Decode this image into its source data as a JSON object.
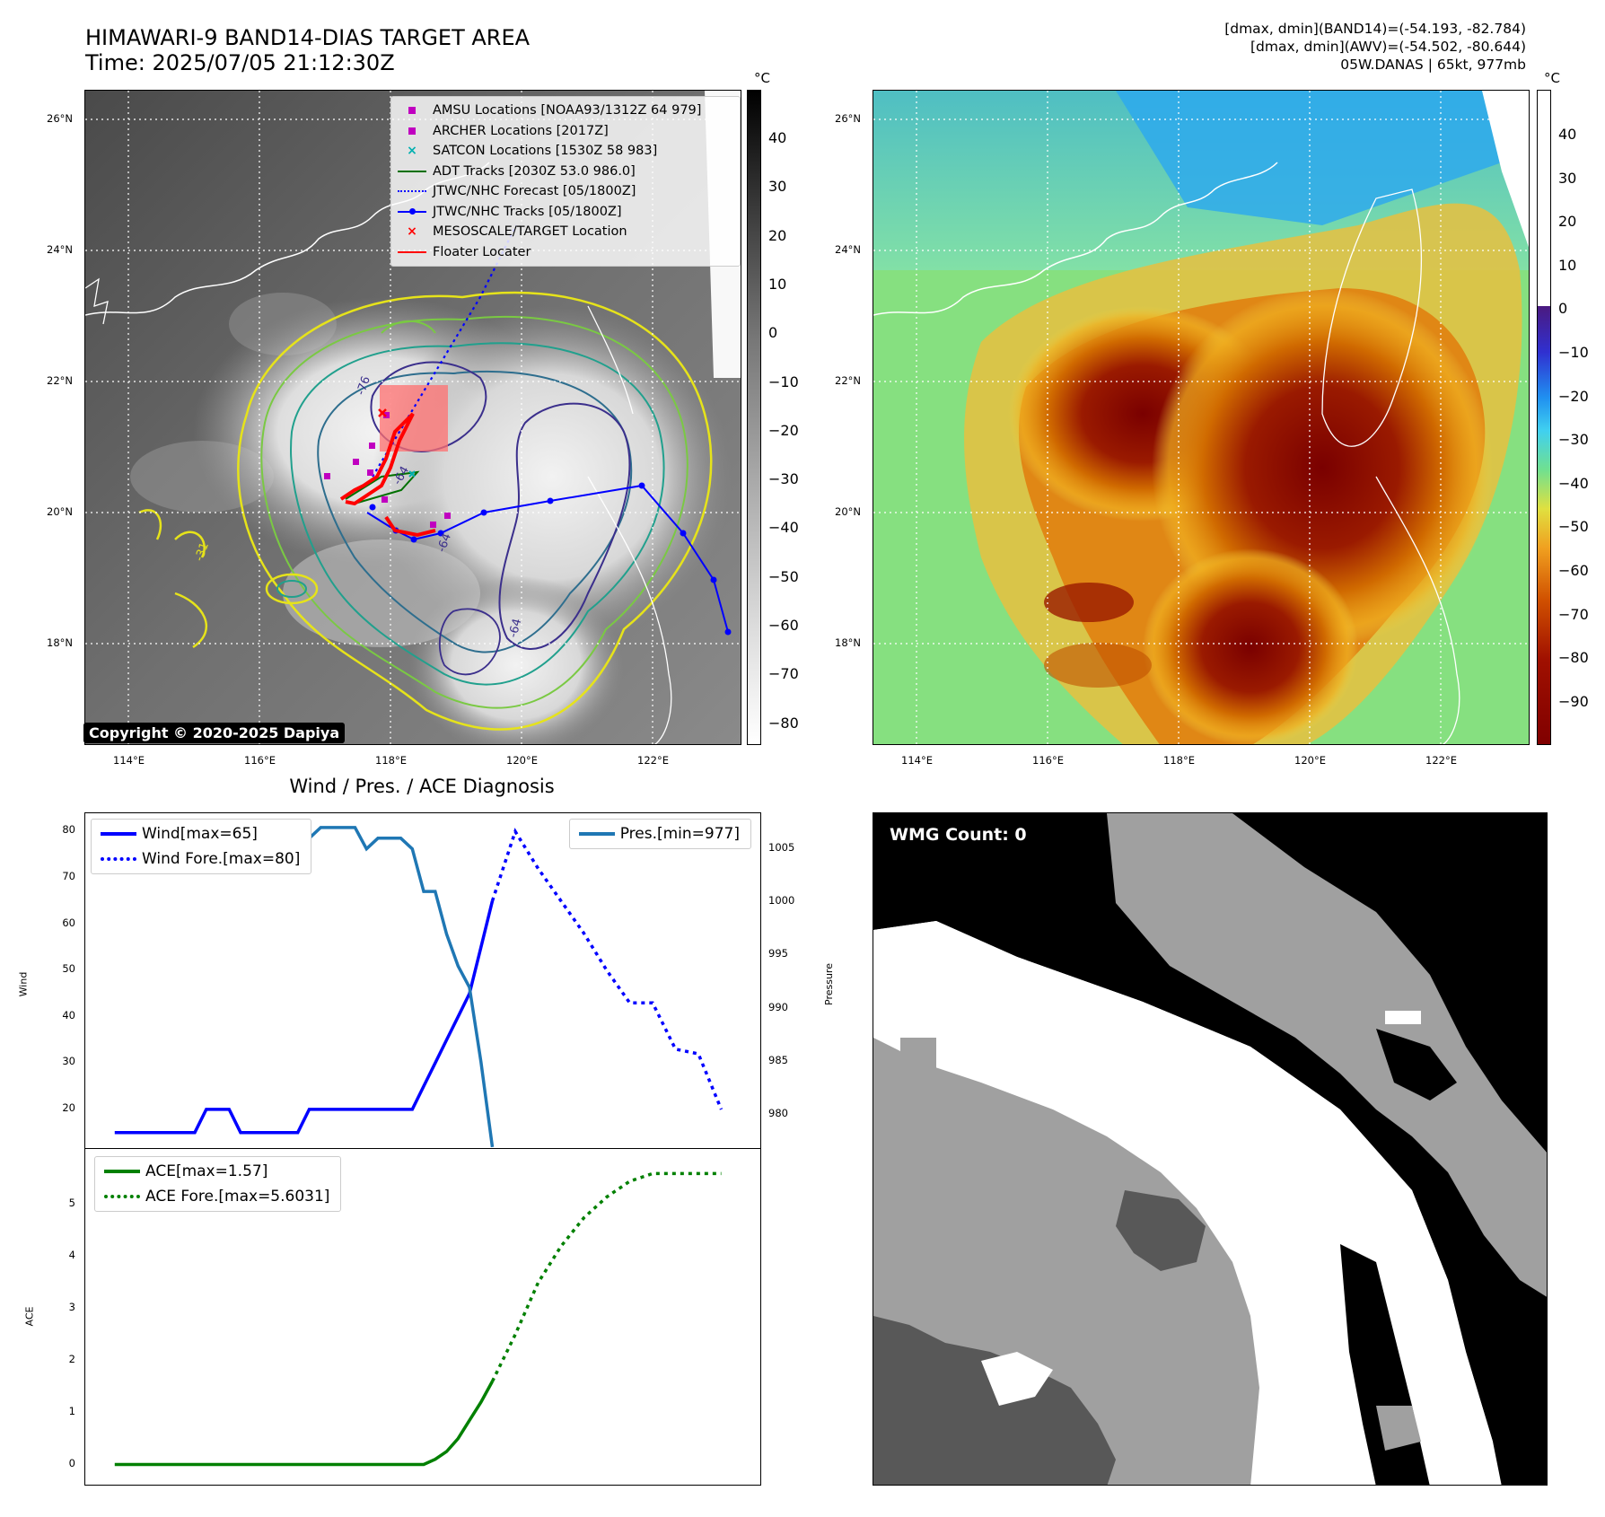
{
  "header": {
    "title_line1": "HIMAWARI-9 BAND14-DIAS TARGET AREA",
    "title_line2": "Time: 2025/07/05 21:12:30Z",
    "info_line1": "[dmax, dmin](BAND14)=(-54.193, -82.784)",
    "info_line2": "[dmax, dmin](AWV)=(-54.502, -80.644)",
    "info_line3": "05W.DANAS | 65kt, 977mb"
  },
  "maps": {
    "lat_labels": [
      "26°N",
      "24°N",
      "22°N",
      "20°N",
      "18°N"
    ],
    "lon_labels": [
      "114°E",
      "116°E",
      "118°E",
      "120°E",
      "122°E"
    ],
    "left_cbar_unit": "°C",
    "left_cbar_ticks": [
      "40",
      "30",
      "20",
      "10",
      "0",
      "−10",
      "−20",
      "−30",
      "−40",
      "−50",
      "−60",
      "−70",
      "−80"
    ],
    "right_cbar_unit": "°C",
    "right_cbar_ticks": [
      "40",
      "30",
      "20",
      "10",
      "0",
      "−10",
      "−20",
      "−30",
      "−40",
      "−50",
      "−60",
      "−70",
      "−80",
      "−90"
    ],
    "legend": [
      {
        "label": "AMSU Locations [NOAA93/1312Z 64 979]",
        "icon": "square-marker",
        "color": "#c000c0"
      },
      {
        "label": "ARCHER Locations [2017Z]",
        "icon": "square-marker",
        "color": "#c000c0"
      },
      {
        "label": "SATCON Locations [1530Z 58 983]",
        "icon": "x-marker",
        "color": "#00b0b0"
      },
      {
        "label": "ADT Tracks [2030Z 53.0 986.0]",
        "icon": "line",
        "color": "#007000"
      },
      {
        "label": "JTWC/NHC Forecast [05/1800Z]",
        "icon": "dotted-line",
        "color": "#0000ff"
      },
      {
        "label": "JTWC/NHC Tracks [05/1800Z]",
        "icon": "line-dot",
        "color": "#0000ff"
      },
      {
        "label": "MESOSCALE/TARGET Location",
        "icon": "x-marker",
        "color": "#ff0000"
      },
      {
        "label": "Floater Locater",
        "icon": "line",
        "color": "#ff0000"
      }
    ],
    "copyright": "Copyright © 2020-2025 Dapiya",
    "contour_labels": [
      "-64",
      "-64",
      "-64",
      "-31",
      "-76"
    ]
  },
  "diagnosis": {
    "title": "Wind / Pres. / ACE Diagnosis",
    "wind_ylabel": "Wind",
    "pressure_ylabel": "Pressure",
    "ace_ylabel": "ACE",
    "wind_ticks": [
      "80",
      "70",
      "60",
      "50",
      "40",
      "30",
      "20"
    ],
    "pressure_ticks": [
      "1005",
      "1000",
      "995",
      "990",
      "985",
      "980"
    ],
    "ace_ticks": [
      "5",
      "4",
      "3",
      "2",
      "1",
      "0"
    ],
    "legend_wind": "Wind[max=65]",
    "legend_wind_fore": "Wind Fore.[max=80]",
    "legend_pres": "Pres.[min=977]",
    "legend_ace": "ACE[max=1.57]",
    "legend_ace_fore": "ACE Fore.[max=5.6031]"
  },
  "wmg": {
    "label": "WMG Count: 0"
  },
  "chart_data": [
    {
      "type": "line",
      "title": "Wind / Pres. / ACE Diagnosis",
      "ylabel": "Wind",
      "ylim": [
        13,
        82
      ],
      "series": [
        {
          "name": "Wind[max=65]",
          "color": "#0000ff",
          "style": "solid",
          "x": [
            0,
            1,
            2,
            3,
            4,
            5,
            6,
            7,
            8,
            9,
            10,
            11,
            12,
            13,
            14,
            15,
            16,
            17,
            18,
            19,
            20,
            21,
            22,
            23,
            24,
            25,
            26,
            27,
            28,
            29,
            30,
            31,
            32,
            33
          ],
          "y": [
            15,
            15,
            15,
            15,
            15,
            15,
            15,
            15,
            20,
            20,
            20,
            15,
            15,
            15,
            15,
            15,
            15,
            20,
            20,
            20,
            20,
            20,
            20,
            20,
            20,
            20,
            20,
            25,
            30,
            35,
            40,
            45,
            55,
            65
          ]
        },
        {
          "name": "Wind Fore.[max=80]",
          "color": "#0000ff",
          "style": "dotted",
          "x": [
            33,
            35,
            37,
            39,
            41,
            43,
            45,
            47,
            49,
            51,
            53
          ],
          "y": [
            65,
            80,
            72,
            65,
            58,
            50,
            43,
            43,
            33,
            32,
            20
          ]
        }
      ]
    },
    {
      "type": "line",
      "ylabel": "Pressure",
      "ylim": [
        977.5,
        1007.5
      ],
      "series": [
        {
          "name": "Pres.[min=977]",
          "color": "#1f77b4",
          "style": "solid",
          "x": [
            0,
            1,
            2,
            3,
            4,
            5,
            6,
            7,
            8,
            9,
            10,
            11,
            12,
            13,
            14,
            15,
            16,
            17,
            18,
            19,
            20,
            21,
            22,
            23,
            24,
            25,
            26,
            27,
            28,
            29,
            30,
            31,
            32,
            33
          ],
          "y": [
            1007,
            1007,
            1007,
            1007,
            1007,
            1007,
            1005,
            1005,
            1005,
            1005,
            1005,
            1006,
            1006,
            1006,
            1006,
            1006,
            1007,
            1006,
            1007,
            1007,
            1007,
            1007,
            1005,
            1006,
            1006,
            1006,
            1005,
            1001,
            1001,
            997,
            994,
            992,
            985,
            977
          ]
        }
      ]
    },
    {
      "type": "line",
      "ylabel": "ACE",
      "ylim": [
        -0.25,
        5.9
      ],
      "series": [
        {
          "name": "ACE[max=1.57]",
          "color": "#008000",
          "style": "solid",
          "x": [
            0,
            3,
            6,
            9,
            12,
            15,
            18,
            21,
            24,
            27,
            28,
            29,
            30,
            31,
            32,
            33
          ],
          "y": [
            0,
            0,
            0,
            0,
            0,
            0,
            0,
            0,
            0,
            0,
            0.1,
            0.25,
            0.5,
            0.85,
            1.2,
            1.6
          ]
        },
        {
          "name": "ACE Fore.[max=5.6031]",
          "color": "#008000",
          "style": "dotted",
          "x": [
            33,
            35,
            37,
            39,
            41,
            43,
            45,
            47,
            49,
            51,
            53
          ],
          "y": [
            1.6,
            2.5,
            3.5,
            4.2,
            4.75,
            5.15,
            5.45,
            5.6,
            5.6,
            5.6,
            5.6
          ]
        }
      ]
    }
  ]
}
